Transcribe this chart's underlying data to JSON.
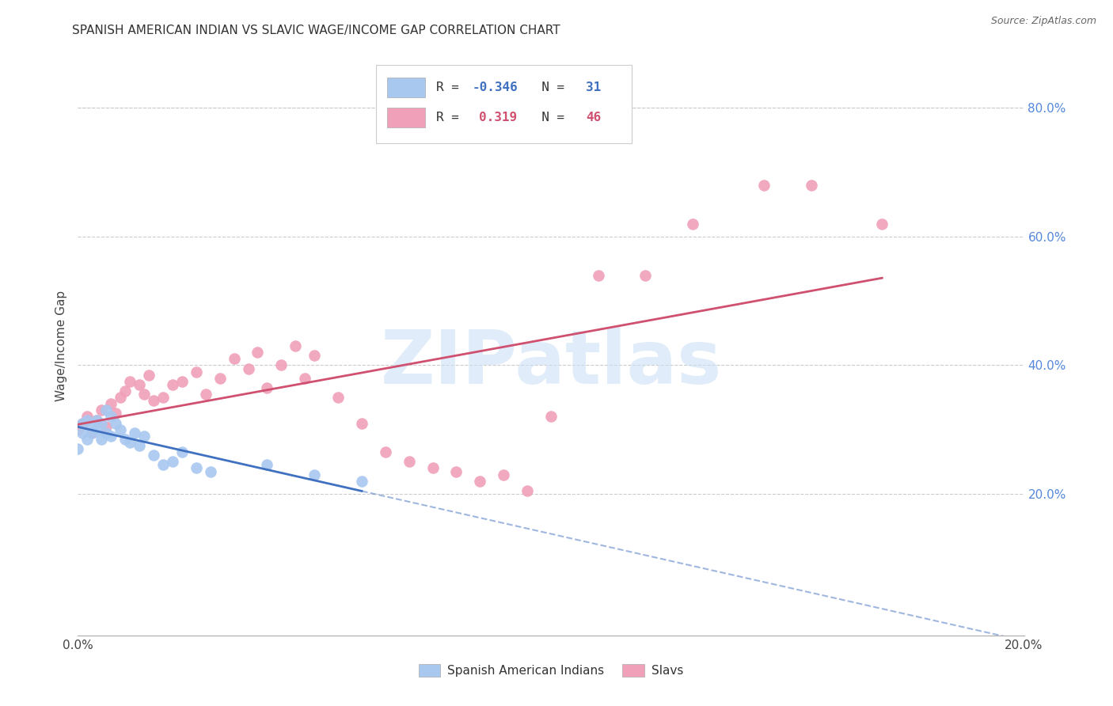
{
  "title": "SPANISH AMERICAN INDIAN VS SLAVIC WAGE/INCOME GAP CORRELATION CHART",
  "source": "Source: ZipAtlas.com",
  "ylabel": "Wage/Income Gap",
  "right_ytick_vals": [
    0.2,
    0.4,
    0.6,
    0.8
  ],
  "right_ytick_labels": [
    "20.0%",
    "40.0%",
    "60.0%",
    "80.0%"
  ],
  "xlim": [
    0.0,
    0.2
  ],
  "ylim": [
    -0.02,
    0.88
  ],
  "watermark": "ZIPatlas",
  "blue_R": "-0.346",
  "blue_N": "31",
  "pink_R": "0.319",
  "pink_N": "46",
  "blue_color": "#a8c8f0",
  "pink_color": "#f0a0b8",
  "blue_line_color": "#4070c0",
  "pink_line_color": "#d05070",
  "blue_x": [
    0.0,
    0.001,
    0.001,
    0.002,
    0.002,
    0.003,
    0.003,
    0.004,
    0.004,
    0.005,
    0.005,
    0.006,
    0.006,
    0.007,
    0.007,
    0.008,
    0.009,
    0.01,
    0.011,
    0.012,
    0.013,
    0.014,
    0.016,
    0.018,
    0.02,
    0.022,
    0.025,
    0.028,
    0.04,
    0.05,
    0.06
  ],
  "blue_y": [
    0.27,
    0.295,
    0.31,
    0.285,
    0.315,
    0.305,
    0.295,
    0.3,
    0.315,
    0.285,
    0.31,
    0.295,
    0.33,
    0.29,
    0.32,
    0.31,
    0.3,
    0.285,
    0.28,
    0.295,
    0.275,
    0.29,
    0.26,
    0.245,
    0.25,
    0.265,
    0.24,
    0.235,
    0.245,
    0.23,
    0.22
  ],
  "pink_x": [
    0.0,
    0.001,
    0.002,
    0.003,
    0.004,
    0.005,
    0.006,
    0.007,
    0.008,
    0.009,
    0.01,
    0.011,
    0.013,
    0.014,
    0.015,
    0.016,
    0.018,
    0.02,
    0.022,
    0.025,
    0.027,
    0.03,
    0.033,
    0.036,
    0.038,
    0.04,
    0.043,
    0.046,
    0.048,
    0.05,
    0.055,
    0.06,
    0.065,
    0.07,
    0.075,
    0.08,
    0.085,
    0.09,
    0.095,
    0.1,
    0.11,
    0.12,
    0.13,
    0.145,
    0.155,
    0.17
  ],
  "pink_y": [
    0.3,
    0.31,
    0.32,
    0.295,
    0.315,
    0.33,
    0.305,
    0.34,
    0.325,
    0.35,
    0.36,
    0.375,
    0.37,
    0.355,
    0.385,
    0.345,
    0.35,
    0.37,
    0.375,
    0.39,
    0.355,
    0.38,
    0.41,
    0.395,
    0.42,
    0.365,
    0.4,
    0.43,
    0.38,
    0.415,
    0.35,
    0.31,
    0.265,
    0.25,
    0.24,
    0.235,
    0.22,
    0.23,
    0.205,
    0.32,
    0.54,
    0.54,
    0.62,
    0.68,
    0.68,
    0.62
  ]
}
